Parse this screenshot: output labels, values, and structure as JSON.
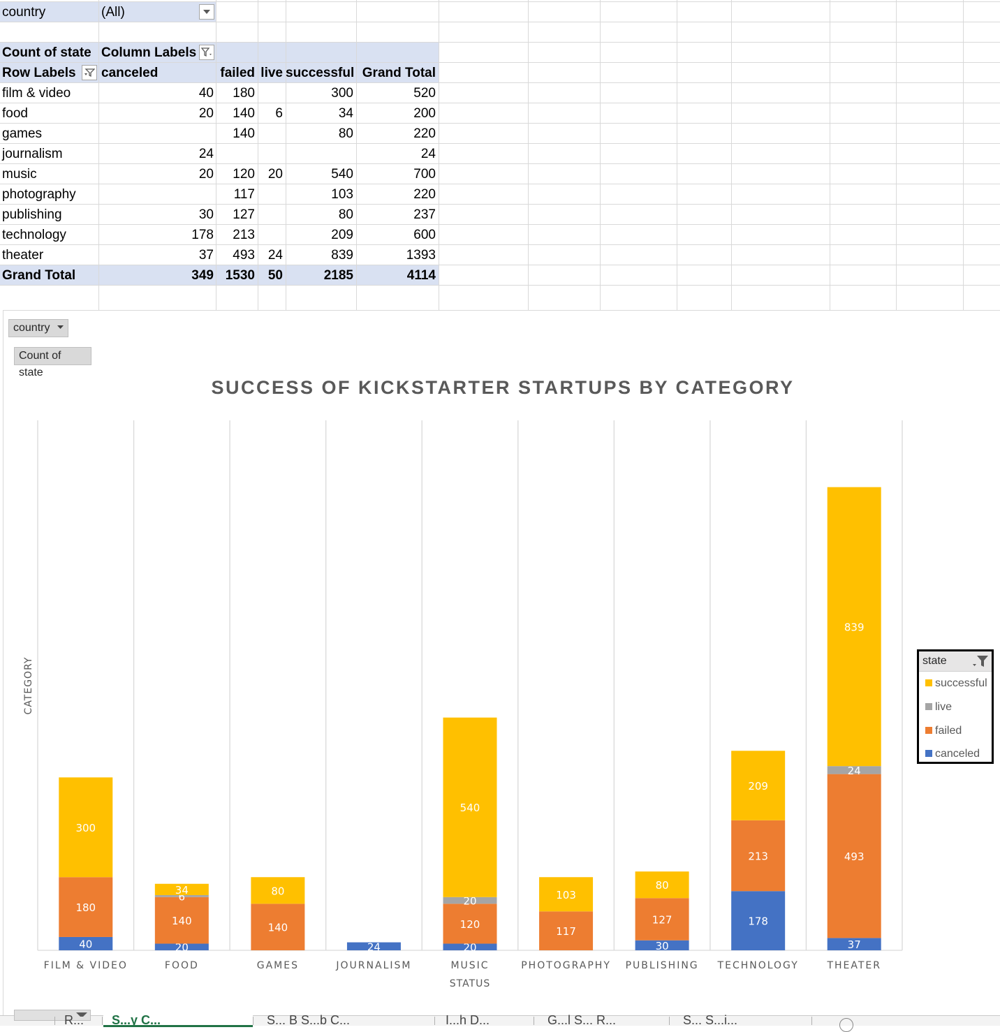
{
  "pivot": {
    "filter_label": "country",
    "filter_value": "(All)",
    "measure_label": "Count of state",
    "column_labels": "Column Labels",
    "row_labels": "Row Labels",
    "columns": [
      "canceled",
      "failed",
      "live",
      "successful",
      "Grand Total"
    ],
    "rows": [
      {
        "label": "film & video",
        "values": [
          "40",
          "180",
          "",
          "300",
          "520"
        ]
      },
      {
        "label": "food",
        "values": [
          "20",
          "140",
          "6",
          "34",
          "200"
        ]
      },
      {
        "label": "games",
        "values": [
          "",
          "140",
          "",
          "80",
          "220"
        ]
      },
      {
        "label": "journalism",
        "values": [
          "24",
          "",
          "",
          "",
          "24"
        ]
      },
      {
        "label": "music",
        "values": [
          "20",
          "120",
          "20",
          "540",
          "700"
        ]
      },
      {
        "label": "photography",
        "values": [
          "",
          "117",
          "",
          "103",
          "220"
        ]
      },
      {
        "label": "publishing",
        "values": [
          "30",
          "127",
          "",
          "80",
          "237"
        ]
      },
      {
        "label": "technology",
        "values": [
          "178",
          "213",
          "",
          "209",
          "600"
        ]
      },
      {
        "label": "theater",
        "values": [
          "37",
          "493",
          "24",
          "839",
          "1393"
        ]
      }
    ],
    "grand_total": {
      "label": "Grand Total",
      "values": [
        "349",
        "1530",
        "50",
        "2185",
        "4114"
      ]
    }
  },
  "chart_buttons": {
    "country": "country",
    "count_of_state": "Count of state"
  },
  "legend": {
    "title": "state",
    "items": [
      "successful",
      "live",
      "failed",
      "canceled"
    ]
  },
  "colors": {
    "canceled": "#4472c4",
    "failed": "#ed7d31",
    "live": "#a5a5a5",
    "successful": "#ffc000"
  },
  "chart_data": {
    "type": "bar",
    "stacked": true,
    "title": "SUCCESS OF KICKSTARTER STARTUPS BY CATEGORY",
    "xlabel": "STATUS",
    "ylabel": "CATEGORY",
    "categories": [
      "FILM & VIDEO",
      "FOOD",
      "GAMES",
      "JOURNALISM",
      "MUSIC",
      "PHOTOGRAPHY",
      "PUBLISHING",
      "TECHNOLOGY",
      "THEATER"
    ],
    "series": [
      {
        "name": "canceled",
        "values": [
          40,
          20,
          0,
          24,
          20,
          0,
          30,
          178,
          37
        ]
      },
      {
        "name": "failed",
        "values": [
          180,
          140,
          140,
          0,
          120,
          117,
          127,
          213,
          493
        ]
      },
      {
        "name": "live",
        "values": [
          0,
          6,
          0,
          0,
          20,
          0,
          0,
          0,
          24
        ]
      },
      {
        "name": "successful",
        "values": [
          300,
          34,
          80,
          0,
          540,
          103,
          80,
          209,
          839
        ]
      }
    ],
    "ylim": [
      0,
      1400
    ],
    "grid": "vertical",
    "legend_position": "right"
  },
  "sheet_tabs": [
    "...",
    "R...",
    "S...y C...",
    "S... B S...b C...",
    "I...h D...",
    "G...l S... R...",
    "S... S...i..."
  ]
}
